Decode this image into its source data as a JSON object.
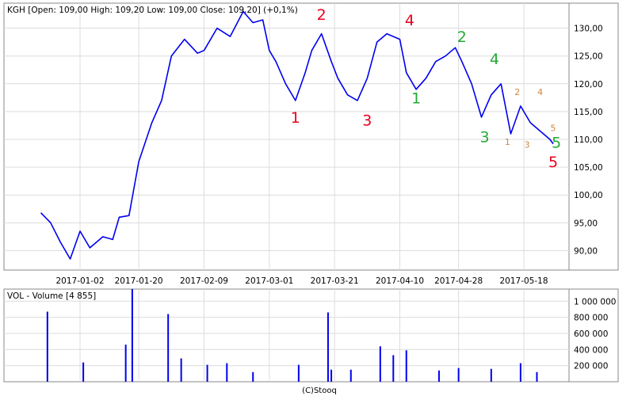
{
  "chart_data": [
    {
      "type": "line",
      "title": "KGH [Open: 109,00  High: 109,20  Low: 109,00  Close: 109,20] (+0,1%)",
      "x_ticks": [
        "2017-01-02",
        "2017-01-20",
        "2017-02-09",
        "2017-03-01",
        "2017-03-21",
        "2017-04-10",
        "2017-04-28",
        "2017-05-18"
      ],
      "y_ticks": [
        "90,00",
        "95,00",
        "100,00",
        "105,00",
        "110,00",
        "115,00",
        "120,00",
        "125,00",
        "130,00"
      ],
      "ylim": [
        86.5,
        134.5
      ],
      "grid": true,
      "series": [
        {
          "color": "#0000ee",
          "x": [
            "2016-12-21",
            "2016-12-24",
            "2016-12-27",
            "2016-12-30",
            "2017-01-02",
            "2017-01-05",
            "2017-01-09",
            "2017-01-12",
            "2017-01-14",
            "2017-01-17",
            "2017-01-20",
            "2017-01-24",
            "2017-01-27",
            "2017-01-30",
            "2017-02-03",
            "2017-02-07",
            "2017-02-09",
            "2017-02-13",
            "2017-02-17",
            "2017-02-21",
            "2017-02-24",
            "2017-02-27",
            "2017-03-01",
            "2017-03-03",
            "2017-03-06",
            "2017-03-09",
            "2017-03-12",
            "2017-03-14",
            "2017-03-17",
            "2017-03-20",
            "2017-03-22",
            "2017-03-25",
            "2017-03-28",
            "2017-03-31",
            "2017-04-03",
            "2017-04-06",
            "2017-04-10",
            "2017-04-12",
            "2017-04-15",
            "2017-04-18",
            "2017-04-21",
            "2017-04-24",
            "2017-04-27",
            "2017-04-29",
            "2017-05-02",
            "2017-05-05",
            "2017-05-08",
            "2017-05-11",
            "2017-05-14",
            "2017-05-17",
            "2017-05-20",
            "2017-05-23",
            "2017-05-26",
            "2017-05-27"
          ],
          "y": [
            96.8,
            95.0,
            91.5,
            88.5,
            93.5,
            90.5,
            92.5,
            92.0,
            96.0,
            96.3,
            106.0,
            113.0,
            117.0,
            125.0,
            128.0,
            125.5,
            126.0,
            130.0,
            128.5,
            133.0,
            131.0,
            131.5,
            126.0,
            124.0,
            120.0,
            117.0,
            122.0,
            126.0,
            129.0,
            124.0,
            121.0,
            118.0,
            117.0,
            121.0,
            127.5,
            129.0,
            128.0,
            122.0,
            119.0,
            121.0,
            124.0,
            125.0,
            126.5,
            124.0,
            120.0,
            114.0,
            118.0,
            120.0,
            111.0,
            116.0,
            113.0,
            111.5,
            110.0,
            109.2
          ]
        }
      ],
      "annotations": [
        {
          "text": "1",
          "color": "#e8001c",
          "x": "2017-03-09",
          "y": 113.0
        },
        {
          "text": "2",
          "color": "#e8001c",
          "x": "2017-03-17",
          "y": 131.5
        },
        {
          "text": "3",
          "color": "#e8001c",
          "x": "2017-03-31",
          "y": 112.5
        },
        {
          "text": "4",
          "color": "#e8001c",
          "x": "2017-04-13",
          "y": 130.5
        },
        {
          "text": "5",
          "color": "#e8001c",
          "x": "2017-05-27",
          "y": 105.0
        },
        {
          "text": "1",
          "color": "#22aa33",
          "x": "2017-04-15",
          "y": 116.5
        },
        {
          "text": "2",
          "color": "#22aa33",
          "x": "2017-04-29",
          "y": 127.5
        },
        {
          "text": "3",
          "color": "#22aa33",
          "x": "2017-05-06",
          "y": 109.5
        },
        {
          "text": "4",
          "color": "#22aa33",
          "x": "2017-05-09",
          "y": 123.5
        },
        {
          "text": "5",
          "color": "#22aa33",
          "x": "2017-05-28",
          "y": 108.5
        },
        {
          "text": "1",
          "color": "#cc8844",
          "x": "2017-05-13",
          "y": 109.0
        },
        {
          "text": "2",
          "color": "#cc8844",
          "x": "2017-05-16",
          "y": 118.0
        },
        {
          "text": "3",
          "color": "#cc8844",
          "x": "2017-05-19",
          "y": 108.5
        },
        {
          "text": "4",
          "color": "#cc8844",
          "x": "2017-05-23",
          "y": 118.0
        },
        {
          "text": "5",
          "color": "#cc8844",
          "x": "2017-05-27",
          "y": 111.5
        }
      ]
    },
    {
      "type": "bar",
      "title": "VOL - Volume [4 855]",
      "y_ticks": [
        "200 000",
        "400 000",
        "600 000",
        "800 000",
        "1 000 000"
      ],
      "ylim": [
        0,
        1150000
      ],
      "grid": true,
      "series": [
        {
          "color": "#0000ee",
          "x": [
            "2016-12-23",
            "2017-01-03",
            "2017-01-16",
            "2017-01-18",
            "2017-01-29",
            "2017-02-02",
            "2017-02-10",
            "2017-02-16",
            "2017-02-24",
            "2017-03-10",
            "2017-03-19",
            "2017-03-20",
            "2017-03-26",
            "2017-04-04",
            "2017-04-08",
            "2017-04-12",
            "2017-04-22",
            "2017-04-28",
            "2017-05-08",
            "2017-05-17",
            "2017-05-22"
          ],
          "values": [
            870000,
            240000,
            460000,
            1150000,
            840000,
            290000,
            210000,
            230000,
            120000,
            210000,
            860000,
            150000,
            150000,
            440000,
            330000,
            390000,
            140000,
            170000,
            160000,
            230000,
            120000
          ]
        }
      ]
    }
  ],
  "footer": "(C)Stooq"
}
